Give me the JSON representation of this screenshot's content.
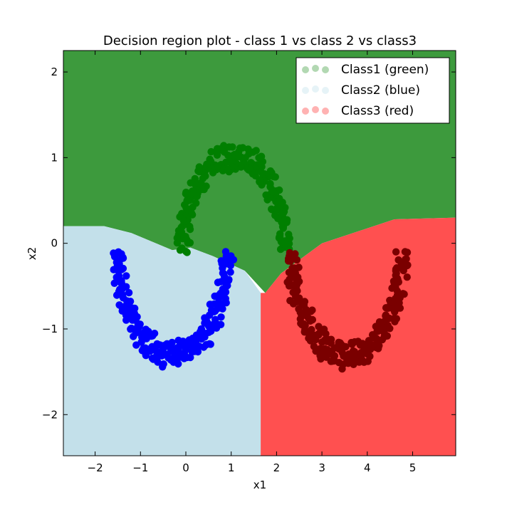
{
  "chart_data": {
    "type": "scatter",
    "title": "Decision region plot - class 1 vs class 2 vs class3",
    "xlabel": "x1",
    "ylabel": "x2",
    "xlim": [
      -2.7,
      5.95
    ],
    "ylim": [
      -2.48,
      2.25
    ],
    "xticks": [
      -2,
      -1,
      0,
      1,
      2,
      3,
      4,
      5
    ],
    "xtick_labels": [
      "−2",
      "−1",
      "0",
      "1",
      "2",
      "3",
      "4",
      "5"
    ],
    "yticks": [
      -2,
      -1,
      0,
      1,
      2
    ],
    "ytick_labels": [
      "−2",
      "−1",
      "0",
      "1",
      "2"
    ],
    "grid": false,
    "legend_position": "top-right",
    "regions": [
      {
        "name": "Class1 (green)",
        "color": "#3d9a3d",
        "polygon": [
          [
            -2.7,
            2.25
          ],
          [
            5.95,
            2.25
          ],
          [
            5.95,
            0.3
          ],
          [
            4.6,
            0.28
          ],
          [
            3.0,
            0.0
          ],
          [
            2.1,
            -0.35
          ],
          [
            1.75,
            -0.58
          ],
          [
            1.3,
            -0.32
          ],
          [
            0.6,
            -0.15
          ],
          [
            0.1,
            -0.05
          ],
          [
            -0.3,
            -0.08
          ],
          [
            -1.2,
            0.12
          ],
          [
            -1.8,
            0.2
          ],
          [
            -2.7,
            0.2
          ]
        ]
      },
      {
        "name": "Class2 (blue)",
        "color": "#c3e0ea",
        "polygon": [
          [
            -2.7,
            0.2
          ],
          [
            -1.8,
            0.2
          ],
          [
            -1.2,
            0.12
          ],
          [
            -0.3,
            -0.08
          ],
          [
            0.1,
            -0.05
          ],
          [
            0.6,
            -0.15
          ],
          [
            1.3,
            -0.32
          ],
          [
            1.65,
            -0.58
          ],
          [
            1.65,
            -2.48
          ],
          [
            -2.7,
            -2.48
          ]
        ]
      },
      {
        "name": "Class3 (red)",
        "color": "#ff5050",
        "polygon": [
          [
            1.65,
            -0.58
          ],
          [
            1.75,
            -0.58
          ],
          [
            2.1,
            -0.35
          ],
          [
            3.0,
            0.0
          ],
          [
            4.6,
            0.28
          ],
          [
            5.95,
            0.3
          ],
          [
            5.95,
            -2.48
          ],
          [
            1.65,
            -2.48
          ]
        ]
      }
    ],
    "series": [
      {
        "name": "Class1 (green)",
        "color": "#007f00",
        "arc": {
          "center": [
            1.05,
            -0.1
          ],
          "radius": 1.12,
          "start_deg": 0,
          "end_deg": 180
        }
      },
      {
        "name": "Class2 (blue)",
        "color": "#0000ff",
        "arc": {
          "center": [
            -0.3,
            -0.1
          ],
          "radius": 1.2,
          "start_deg": 180,
          "end_deg": 360
        }
      },
      {
        "name": "Class3 (red)",
        "color": "#7a0000",
        "arc": {
          "center": [
            3.55,
            -0.1
          ],
          "radius": 1.2,
          "start_deg": 180,
          "end_deg": 360
        }
      }
    ],
    "legend": [
      {
        "label": "Class1 (green)",
        "marker_color": "#007f00"
      },
      {
        "label": "Class2 (blue)",
        "marker_color": "#add8e6"
      },
      {
        "label": "Class3 (red)",
        "marker_color": "#ff0000"
      }
    ]
  }
}
